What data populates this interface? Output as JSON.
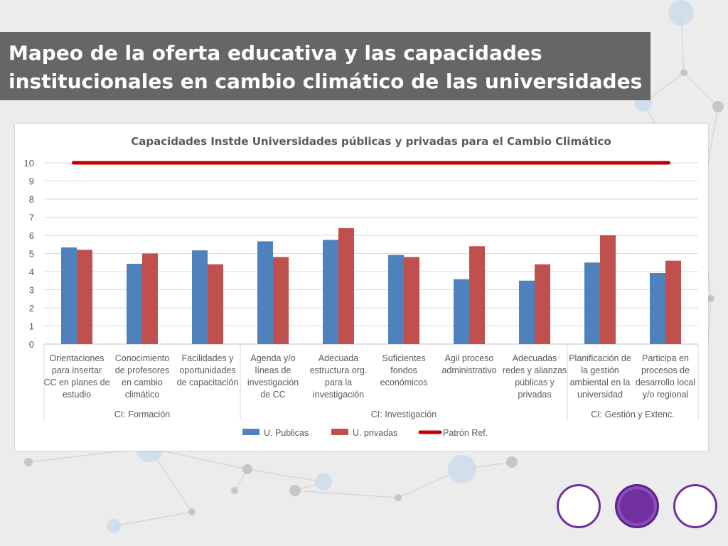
{
  "slide": {
    "title_lines": [
      "Mapeo de la oferta educativa y las capacidades",
      "institucionales en cambio climático de las universidades"
    ],
    "colors": {
      "title_bg": "#666666",
      "nav_accent": "#7030a0",
      "background": "#ececec"
    }
  },
  "nav": {
    "buttons": [
      {
        "name": "nav-button-left",
        "style": "white"
      },
      {
        "name": "nav-button-center",
        "style": "purple"
      },
      {
        "name": "nav-button-right",
        "style": "white"
      }
    ]
  },
  "chart_data": {
    "type": "bar",
    "title": "Capacidades Instde Universidades públicas y privadas para el Cambio Climático",
    "xlabel": "",
    "ylabel": "",
    "ylim": [
      0,
      10
    ],
    "yticks": [
      0,
      1,
      2,
      3,
      4,
      5,
      6,
      7,
      8,
      9,
      10
    ],
    "grid": true,
    "legend_position": "bottom",
    "categories": [
      [
        "Orientaciones",
        "para insertar",
        "CC en planes de",
        "estudio"
      ],
      [
        "Conocimiento",
        "de profesores",
        "en cambio",
        "climático"
      ],
      [
        "Facilidades y",
        "oportunidades",
        "de capacitación"
      ],
      [
        "Agenda y/o",
        "líneas de",
        "investigación",
        "de CC"
      ],
      [
        "Adecuada",
        "estructura org.",
        "para la",
        "investigación"
      ],
      [
        "Suficientes",
        "fondos",
        "económicos"
      ],
      [
        "Agil proceso",
        "administrativo"
      ],
      [
        "Adecuadas",
        "redes y alianzas",
        "públicas y",
        "privadas"
      ],
      [
        "Planificación de",
        "la gestión",
        "ambiental en la",
        "universidad"
      ],
      [
        "Participa en",
        "procesos de",
        "desarrollo local",
        "y/o regional"
      ]
    ],
    "groups": [
      {
        "label": "CI: Formación",
        "span": 3
      },
      {
        "label": "CI: Investigación",
        "span": 5
      },
      {
        "label": "CI: Gestión y Extenc.",
        "span": 2
      }
    ],
    "series": [
      {
        "name": "U. Publicas",
        "kind": "bar",
        "color": "#4f81bd",
        "values": [
          5.33,
          4.43,
          5.17,
          5.67,
          5.75,
          4.92,
          3.58,
          3.5,
          4.5,
          3.92
        ]
      },
      {
        "name": "U. privadas",
        "kind": "bar",
        "color": "#c0504d",
        "values": [
          5.2,
          5.0,
          4.4,
          4.8,
          6.4,
          4.8,
          5.4,
          4.4,
          6.0,
          4.6
        ]
      },
      {
        "name": "Patrón Ref.",
        "kind": "line",
        "color": "#c00000",
        "values": [
          10,
          10,
          10,
          10,
          10,
          10,
          10,
          10,
          10,
          10
        ]
      }
    ]
  }
}
